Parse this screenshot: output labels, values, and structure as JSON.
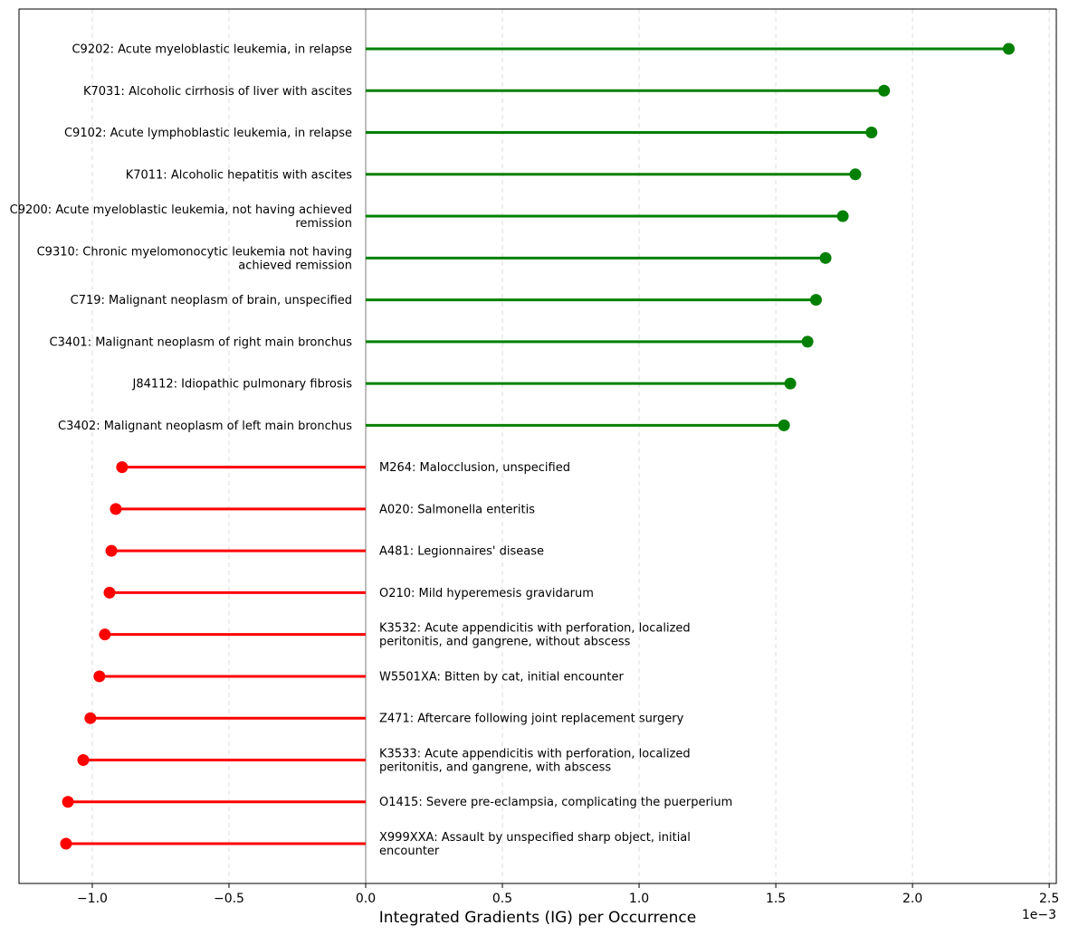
{
  "chart_data": {
    "type": "lollipop",
    "title": "",
    "xlabel": "Integrated Gradients (IG) per Occurrence",
    "ylabel": "",
    "x_scale_label": "1e−3",
    "xlim": [
      -1.268,
      2.526
    ],
    "xticks": [
      -1.0,
      -0.5,
      0.0,
      0.5,
      1.0,
      1.5,
      2.0,
      2.5
    ],
    "xtick_labels": [
      "−1.0",
      "−0.5",
      "0.0",
      "0.5",
      "1.0",
      "1.5",
      "2.0",
      "2.5"
    ],
    "grid": "vertical dashed",
    "colors": {
      "positive": "#008000",
      "negative": "#ff0000",
      "zero_line": "#999999"
    },
    "items": [
      {
        "label": "C9202: Acute myeloblastic leukemia, in relapse",
        "value": 2.352
      },
      {
        "label": "K7031: Alcoholic cirrhosis of liver with ascites",
        "value": 1.896
      },
      {
        "label": "C9102: Acute lymphoblastic leukemia, in relapse",
        "value": 1.85
      },
      {
        "label": "K7011: Alcoholic hepatitis with ascites",
        "value": 1.791
      },
      {
        "label": "C9200: Acute myeloblastic leukemia, not having achieved remission",
        "value": 1.745
      },
      {
        "label": "C9310: Chronic myelomonocytic leukemia not having achieved remission",
        "value": 1.682
      },
      {
        "label": "C719: Malignant neoplasm of brain, unspecified",
        "value": 1.647
      },
      {
        "label": "C3401: Malignant neoplasm of right main bronchus",
        "value": 1.616
      },
      {
        "label": "J84112: Idiopathic pulmonary fibrosis",
        "value": 1.553
      },
      {
        "label": "C3402: Malignant neoplasm of left main bronchus",
        "value": 1.53
      },
      {
        "label": "M264: Malocclusion, unspecified",
        "value": -0.891
      },
      {
        "label": "A020: Salmonella enteritis",
        "value": -0.914
      },
      {
        "label": "A481: Legionnaires' disease",
        "value": -0.93
      },
      {
        "label": "O210: Mild hyperemesis gravidarum",
        "value": -0.937
      },
      {
        "label": "K3532: Acute appendicitis with perforation, localized peritonitis, and gangrene, without abscess",
        "value": -0.954
      },
      {
        "label": "W5501XA: Bitten by cat, initial encounter",
        "value": -0.974
      },
      {
        "label": "Z471: Aftercare following joint replacement surgery",
        "value": -1.007
      },
      {
        "label": "K3533: Acute appendicitis with perforation, localized peritonitis, and gangrene, with abscess",
        "value": -1.033
      },
      {
        "label": "O1415: Severe pre-eclampsia, complicating the puerperium",
        "value": -1.089
      },
      {
        "label": "X999XXA: Assault by unspecified sharp object, initial encounter",
        "value": -1.096
      }
    ]
  }
}
